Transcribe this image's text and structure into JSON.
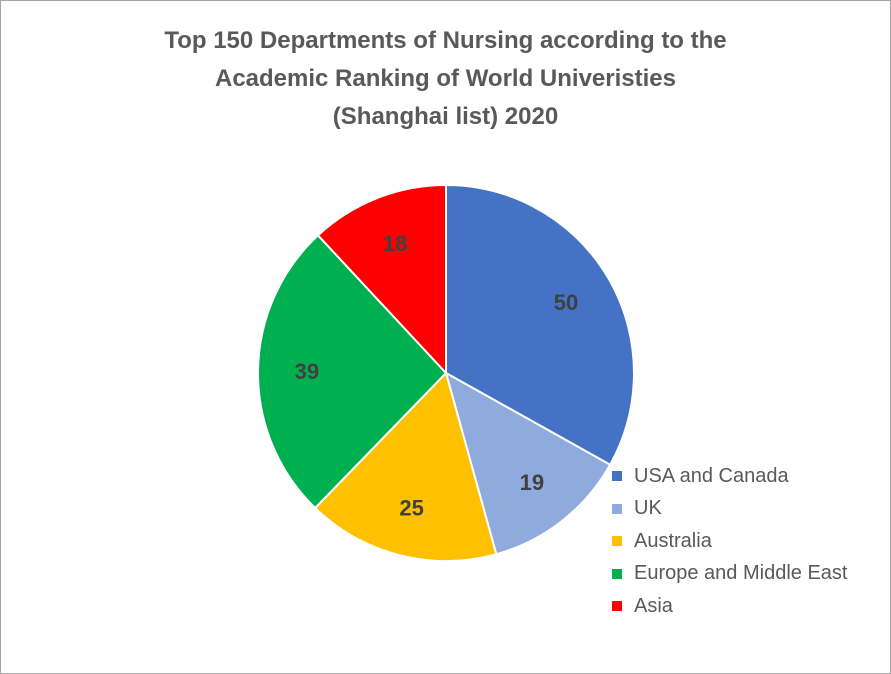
{
  "chart_data": {
    "type": "pie",
    "title_lines": [
      "Top 150 Departments of Nursing according to the",
      "Academic Ranking of World Univeristies",
      "(Shanghai list) 2020"
    ],
    "slices": [
      {
        "label": "USA and Canada",
        "value": 50,
        "color": "#4472C4"
      },
      {
        "label": "UK",
        "value": 19,
        "color": "#8FAADC"
      },
      {
        "label": "Australia",
        "value": 25,
        "color": "#FFC000"
      },
      {
        "label": "Europe and Middle East",
        "value": 39,
        "color": "#00B050"
      },
      {
        "label": "Asia",
        "value": 18,
        "color": "#FF0000"
      }
    ],
    "start_angle_deg": 0,
    "direction": "clockwise",
    "legend_position": "bottom-right"
  }
}
